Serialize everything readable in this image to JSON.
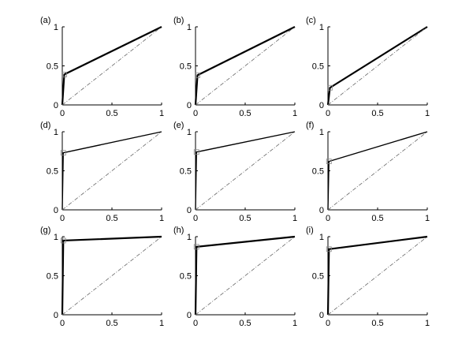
{
  "chart_data": [
    {
      "label": "(a)",
      "type": "line",
      "xlim": [
        0,
        1
      ],
      "ylim": [
        0,
        1
      ],
      "xticks": [
        "0",
        "0.5",
        "1"
      ],
      "yticks": [
        "0",
        "0.5",
        "1"
      ],
      "grid": false,
      "series": [
        {
          "x": [
            0,
            0.02,
            0.02,
            1
          ],
          "y": [
            0,
            0.39,
            0.39,
            1
          ],
          "style": "solid-thick",
          "color": "#000000"
        },
        {
          "x": [
            0,
            1
          ],
          "y": [
            0,
            1
          ],
          "style": "dash-dot",
          "color": "#666666"
        }
      ]
    },
    {
      "label": "(b)",
      "type": "line",
      "xlim": [
        0,
        1
      ],
      "ylim": [
        0,
        1
      ],
      "xticks": [
        "0",
        "0.5",
        "1"
      ],
      "yticks": [
        "0",
        "0.5",
        "1"
      ],
      "grid": false,
      "series": [
        {
          "x": [
            0,
            0.02,
            0.02,
            1
          ],
          "y": [
            0,
            0.38,
            0.38,
            1
          ],
          "style": "solid-thick",
          "color": "#000000"
        },
        {
          "x": [
            0,
            1
          ],
          "y": [
            0,
            1
          ],
          "style": "dash-dot",
          "color": "#666666"
        }
      ]
    },
    {
      "label": "(c)",
      "type": "line",
      "xlim": [
        0,
        1
      ],
      "ylim": [
        0,
        1
      ],
      "xticks": [
        "0",
        "0.5",
        "1"
      ],
      "yticks": [
        "0",
        "0.5",
        "1"
      ],
      "grid": false,
      "series": [
        {
          "x": [
            0,
            0.02,
            0.02,
            1
          ],
          "y": [
            0,
            0.22,
            0.22,
            1
          ],
          "style": "solid-thick",
          "color": "#000000"
        },
        {
          "x": [
            0,
            1
          ],
          "y": [
            0,
            1
          ],
          "style": "dash-dot",
          "color": "#666666"
        }
      ]
    },
    {
      "label": "(d)",
      "type": "line",
      "xlim": [
        0,
        1
      ],
      "ylim": [
        0,
        1
      ],
      "xticks": [
        "0",
        "0.5",
        "1"
      ],
      "yticks": [
        "0",
        "0.5",
        "1"
      ],
      "grid": false,
      "series": [
        {
          "x": [
            0,
            0.01,
            0.01,
            1
          ],
          "y": [
            0,
            0.73,
            0.73,
            1
          ],
          "style": "solid",
          "color": "#000000"
        },
        {
          "x": [
            0,
            1
          ],
          "y": [
            0,
            1
          ],
          "style": "dash-dot",
          "color": "#666666"
        }
      ]
    },
    {
      "label": "(e)",
      "type": "line",
      "xlim": [
        0,
        1
      ],
      "ylim": [
        0,
        1
      ],
      "xticks": [
        "0",
        "0.5",
        "1"
      ],
      "yticks": [
        "0",
        "0.5",
        "1"
      ],
      "grid": false,
      "series": [
        {
          "x": [
            0,
            0.01,
            0.01,
            1
          ],
          "y": [
            0,
            0.74,
            0.74,
            1
          ],
          "style": "solid",
          "color": "#000000"
        },
        {
          "x": [
            0,
            1
          ],
          "y": [
            0,
            1
          ],
          "style": "dash-dot",
          "color": "#666666"
        }
      ]
    },
    {
      "label": "(f)",
      "type": "line",
      "xlim": [
        0,
        1
      ],
      "ylim": [
        0,
        1
      ],
      "xticks": [
        "0",
        "0.5",
        "1"
      ],
      "yticks": [
        "0",
        "0.5",
        "1"
      ],
      "grid": false,
      "series": [
        {
          "x": [
            0,
            0.01,
            0.01,
            1
          ],
          "y": [
            0,
            0.62,
            0.62,
            1
          ],
          "style": "solid",
          "color": "#000000"
        },
        {
          "x": [
            0,
            1
          ],
          "y": [
            0,
            1
          ],
          "style": "dash-dot",
          "color": "#666666"
        }
      ]
    },
    {
      "label": "(g)",
      "type": "line",
      "xlim": [
        0,
        1
      ],
      "ylim": [
        0,
        1
      ],
      "xticks": [
        "0",
        "0.5",
        "1"
      ],
      "yticks": [
        "0",
        "0.5",
        "1"
      ],
      "grid": false,
      "series": [
        {
          "x": [
            0,
            0.01,
            0.01,
            1
          ],
          "y": [
            0,
            0.95,
            0.95,
            1
          ],
          "style": "solid-thick",
          "color": "#000000"
        },
        {
          "x": [
            0,
            1
          ],
          "y": [
            0,
            1
          ],
          "style": "dash-dot",
          "color": "#666666"
        }
      ]
    },
    {
      "label": "(h)",
      "type": "line",
      "xlim": [
        0,
        1
      ],
      "ylim": [
        0,
        1
      ],
      "xticks": [
        "0",
        "0.5",
        "1"
      ],
      "yticks": [
        "0",
        "0.5",
        "1"
      ],
      "grid": false,
      "series": [
        {
          "x": [
            0,
            0.01,
            0.01,
            1
          ],
          "y": [
            0,
            0.87,
            0.87,
            1
          ],
          "style": "solid-thick",
          "color": "#000000"
        },
        {
          "x": [
            0,
            1
          ],
          "y": [
            0,
            1
          ],
          "style": "dash-dot",
          "color": "#666666"
        }
      ]
    },
    {
      "label": "(i)",
      "type": "line",
      "xlim": [
        0,
        1
      ],
      "ylim": [
        0,
        1
      ],
      "xticks": [
        "0",
        "0.5",
        "1"
      ],
      "yticks": [
        "0",
        "0.5",
        "1"
      ],
      "grid": false,
      "series": [
        {
          "x": [
            0,
            0.01,
            0.01,
            1
          ],
          "y": [
            0,
            0.84,
            0.84,
            1
          ],
          "style": "solid-thick",
          "color": "#000000"
        },
        {
          "x": [
            0,
            1
          ],
          "y": [
            0,
            1
          ],
          "style": "dash-dot",
          "color": "#666666"
        }
      ]
    }
  ]
}
